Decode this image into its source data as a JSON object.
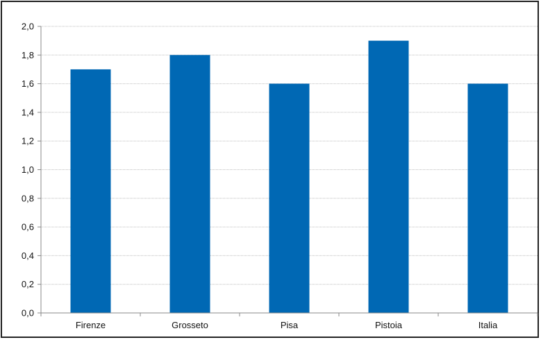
{
  "chart_data": {
    "type": "bar",
    "categories": [
      "Firenze",
      "Grosseto",
      "Pisa",
      "Pistoia",
      "Italia"
    ],
    "values": [
      1.7,
      1.8,
      1.6,
      1.9,
      1.6
    ],
    "title": "",
    "xlabel": "",
    "ylabel": "",
    "ylim": [
      0,
      2.0
    ],
    "yticks": [
      "0,0",
      "0,2",
      "0,4",
      "0,6",
      "0,8",
      "1,0",
      "1,2",
      "1,4",
      "1,6",
      "1,8",
      "2,0"
    ],
    "grid": true,
    "legend": "none",
    "bar_color": "#0068B4",
    "grid_color": "#BDBDBD",
    "axis_color": "#888888"
  }
}
